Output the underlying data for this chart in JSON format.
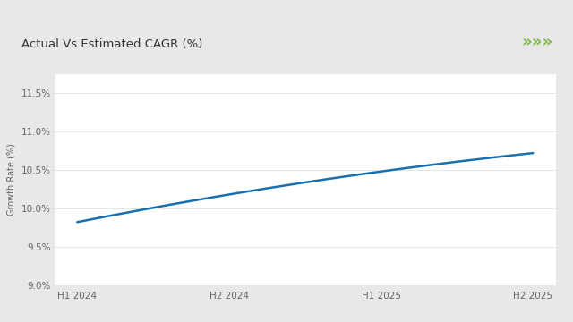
{
  "title": "Actual Vs Estimated CAGR (%)",
  "ylabel": "Growth Rate (%)",
  "x_labels": [
    "H1 2024",
    "H2 2024",
    "H1 2025",
    "H2 2025"
  ],
  "x_values": [
    0,
    1,
    2,
    3
  ],
  "y_values": [
    9.82,
    10.18,
    10.48,
    10.72
  ],
  "ylim": [
    9.0,
    11.75
  ],
  "yticks": [
    9.0,
    9.5,
    10.0,
    10.5,
    11.0,
    11.5
  ],
  "line_color": "#1a6fae",
  "line_width": 1.8,
  "bg_color": "#e8e8e8",
  "plot_bg_color": "#ffffff",
  "card_bg_color": "#ffffff",
  "green_line_color": "#7ab648",
  "arrow_color": "#7ab648",
  "title_fontsize": 9.5,
  "axis_label_fontsize": 7,
  "tick_fontsize": 7.5
}
